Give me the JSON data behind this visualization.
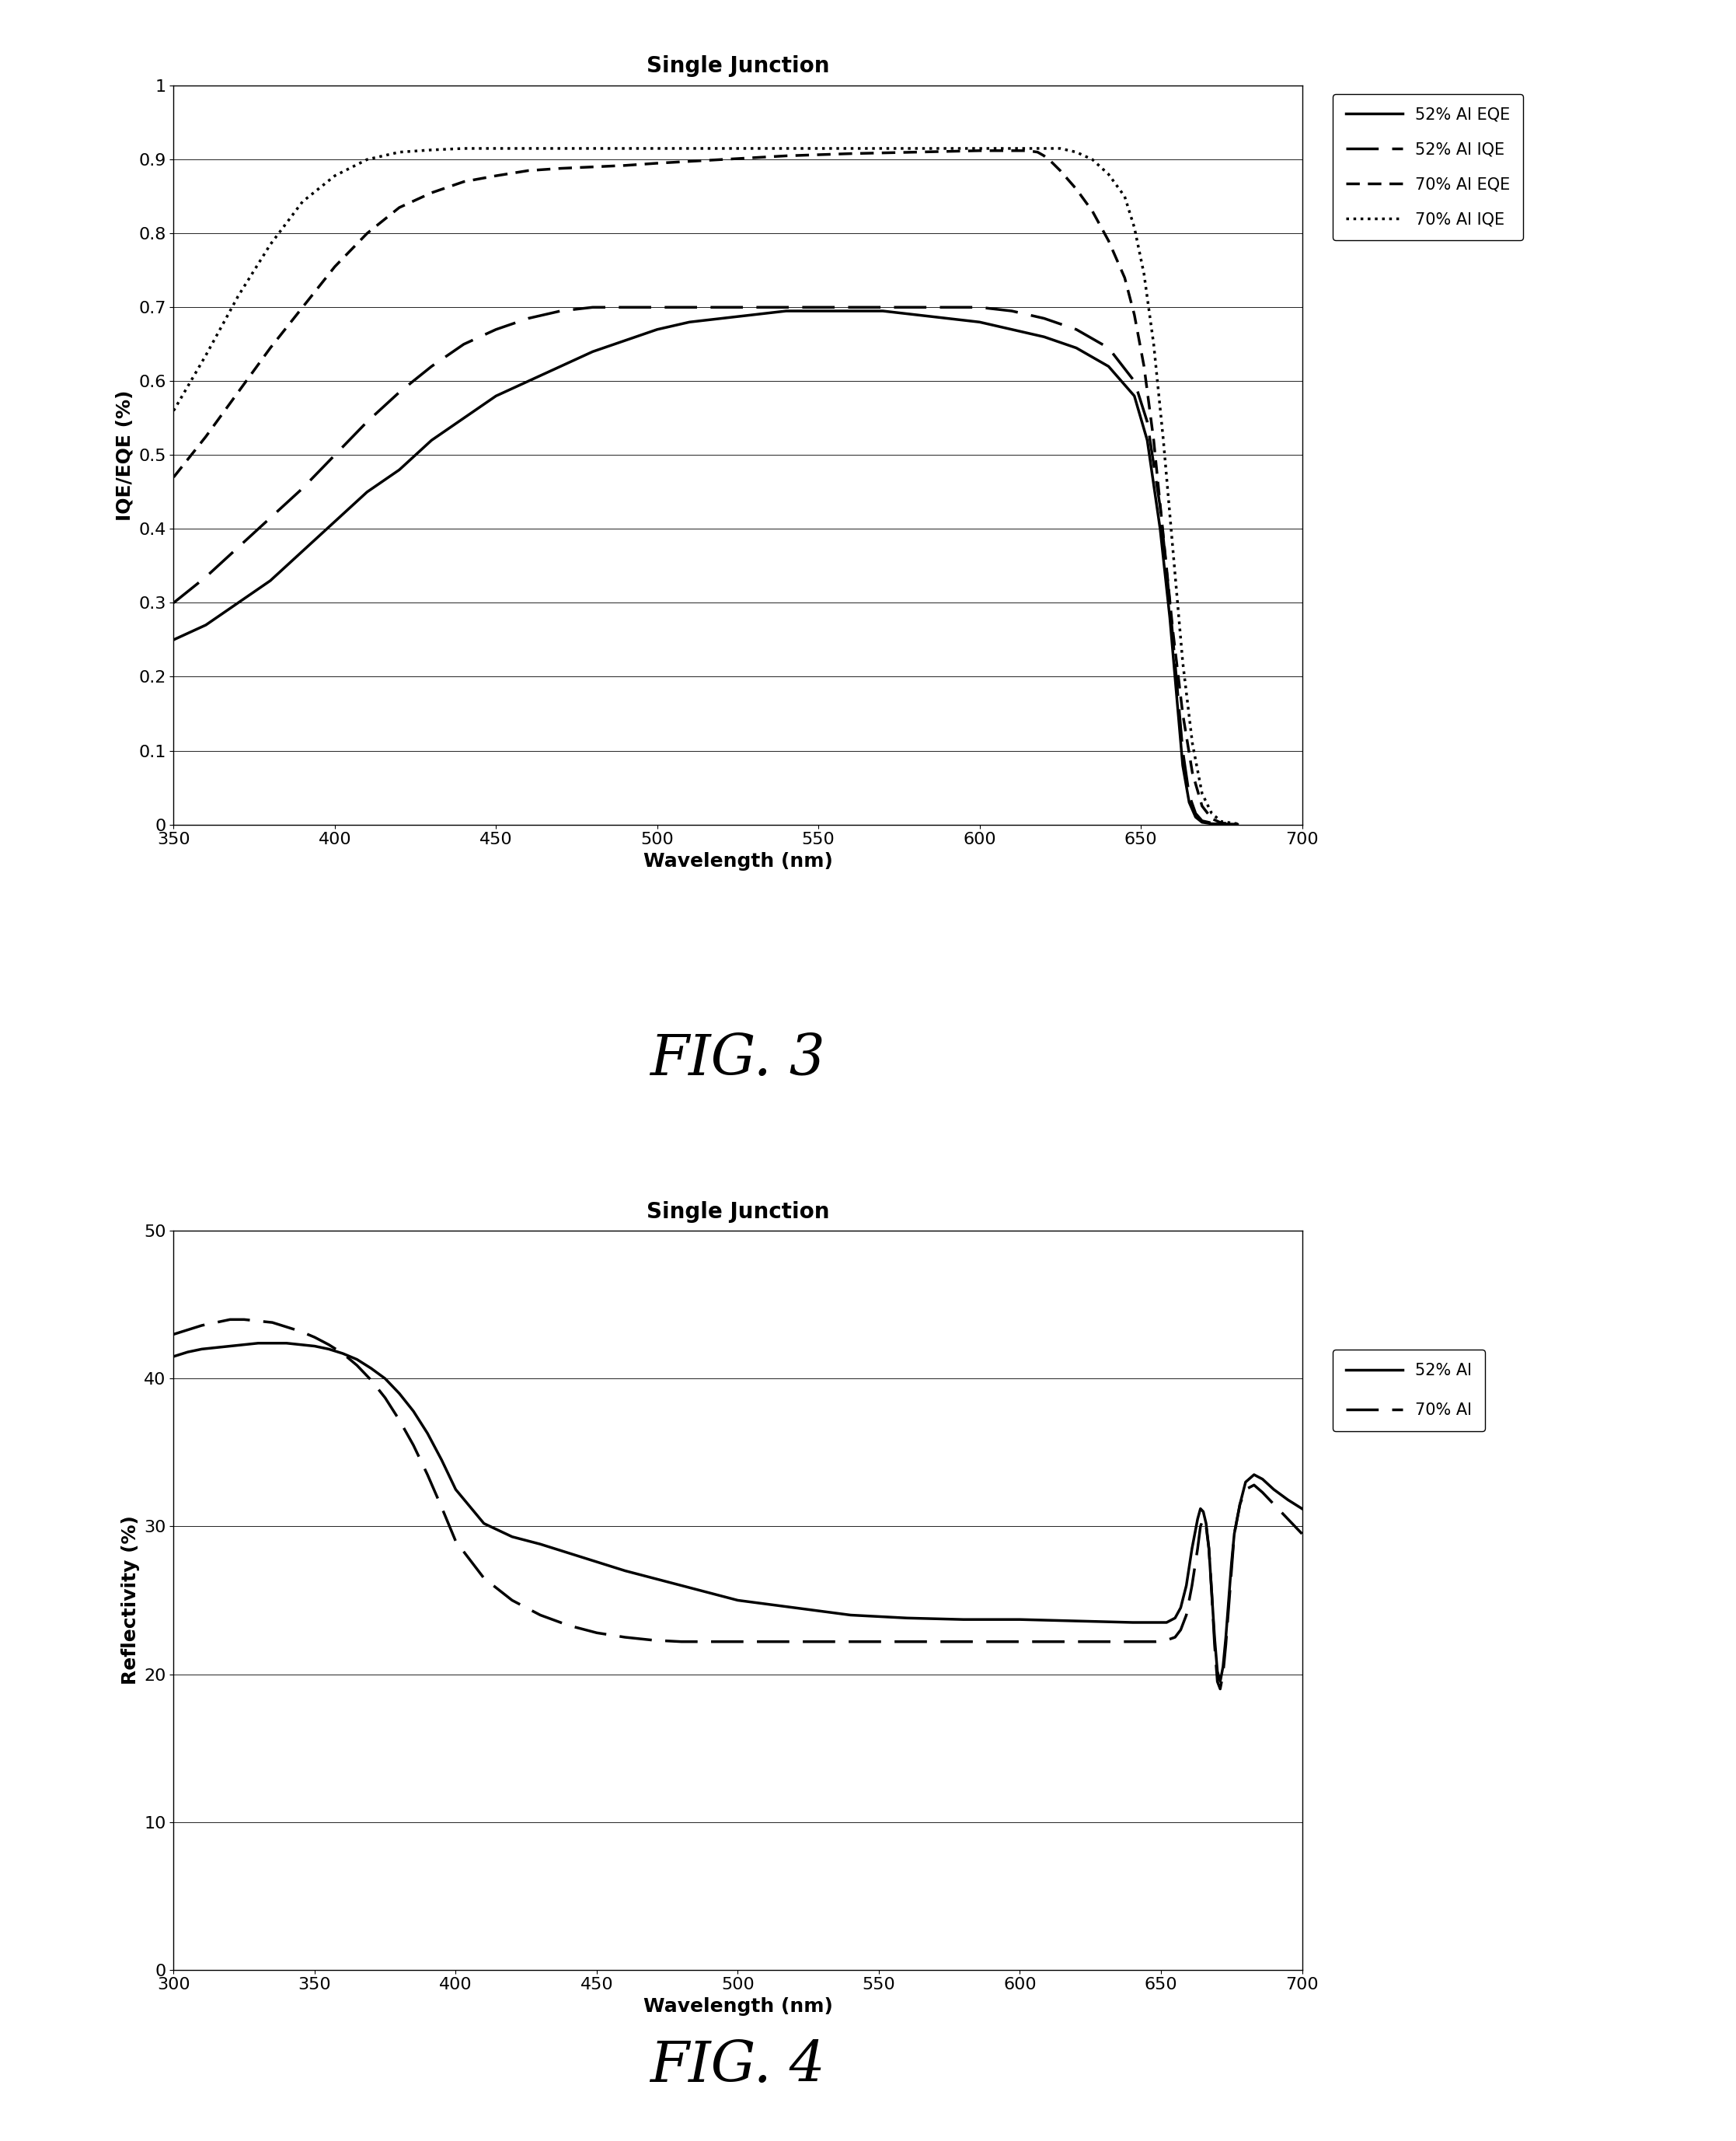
{
  "fig3": {
    "title": "Single Junction",
    "xlabel": "Wavelength (nm)",
    "ylabel": "IQE/EQE (%)",
    "xlim": [
      350,
      700
    ],
    "ylim": [
      0,
      1
    ],
    "xticks": [
      350,
      400,
      450,
      500,
      550,
      600,
      650,
      700
    ],
    "yticks": [
      0,
      0.1,
      0.2,
      0.3,
      0.4,
      0.5,
      0.6,
      0.7,
      0.8,
      0.9,
      1
    ],
    "yticklabels": [
      "0",
      "0.1",
      "0.2",
      "0.3",
      "0.4",
      "0.5",
      "0.6",
      "0.7",
      "0.8",
      "0.9",
      "1"
    ],
    "legend_labels": [
      "52% Al EQE",
      "52% Al IQE",
      "70% Al EQE",
      "70% Al IQE"
    ]
  },
  "fig4": {
    "title": "Single Junction",
    "xlabel": "Wavelength (nm)",
    "ylabel": "Reflectivity (%)",
    "xlim": [
      300,
      700
    ],
    "ylim": [
      0,
      50
    ],
    "xticks": [
      300,
      350,
      400,
      450,
      500,
      550,
      600,
      650,
      700
    ],
    "yticks": [
      0,
      10,
      20,
      30,
      40,
      50
    ],
    "legend_labels": [
      "70% Al",
      "52% Al"
    ]
  },
  "fig3_label": "FIG. 3",
  "fig4_label": "FIG. 4",
  "background_color": "#ffffff",
  "title_fontsize": 20,
  "label_fontsize": 18,
  "tick_fontsize": 16,
  "legend_fontsize": 15,
  "fig_label_fontsize": 52
}
